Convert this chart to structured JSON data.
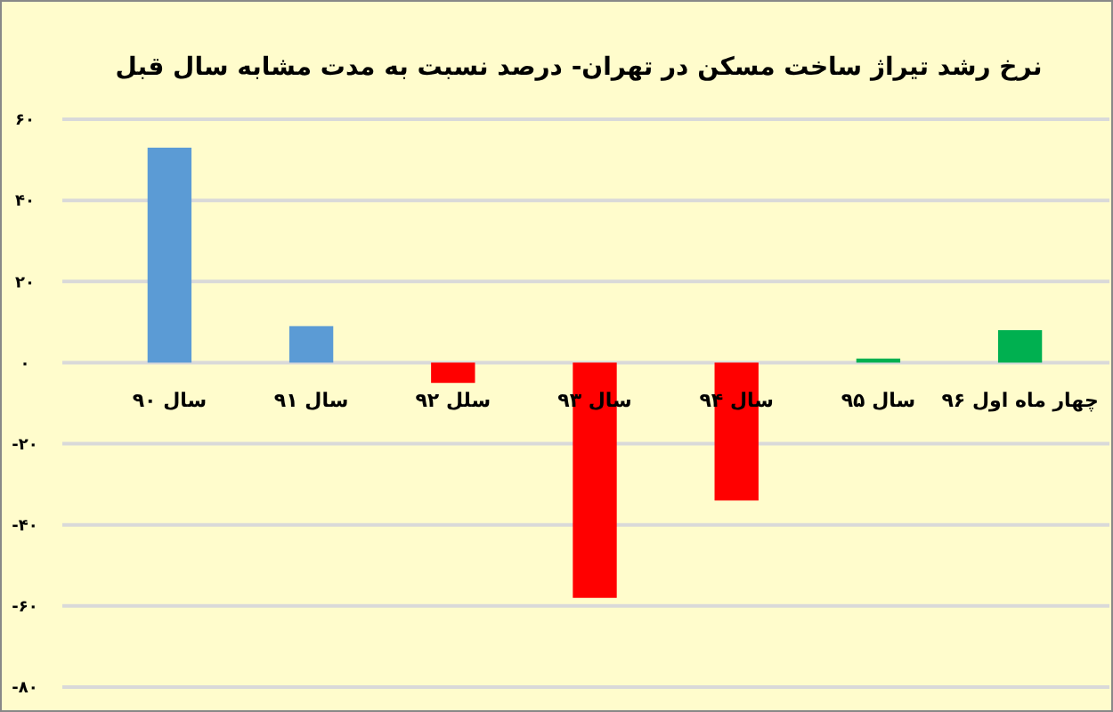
{
  "chart_data": {
    "type": "bar",
    "title": "نرخ رشد تیراژ ساخت مسکن در تهران- درصد نسبت به مدت مشابه سال قبل",
    "categories": [
      "سال ۹۰",
      "سال ۹۱",
      "سلل ۹۲",
      "سال ۹۳",
      "سال ۹۴",
      "سال ۹۵",
      "چهار ماه اول ۹۶"
    ],
    "values": [
      53,
      9,
      -5,
      -58,
      -34,
      1,
      8
    ],
    "colors": [
      "#5b9bd5",
      "#5b9bd5",
      "#ff0000",
      "#ff0000",
      "#ff0000",
      "#00b050",
      "#00b050"
    ],
    "ylim": [
      -80,
      60
    ],
    "yticks": [
      {
        "value": -80,
        "label": "-۸۰"
      },
      {
        "value": -60,
        "label": "-۶۰"
      },
      {
        "value": -40,
        "label": "-۴۰"
      },
      {
        "value": -20,
        "label": "-۲۰"
      },
      {
        "value": 0,
        "label": "۰"
      },
      {
        "value": 20,
        "label": "۲۰"
      },
      {
        "value": 40,
        "label": "۴۰"
      },
      {
        "value": 60,
        "label": "۶۰"
      }
    ],
    "grid": true
  }
}
